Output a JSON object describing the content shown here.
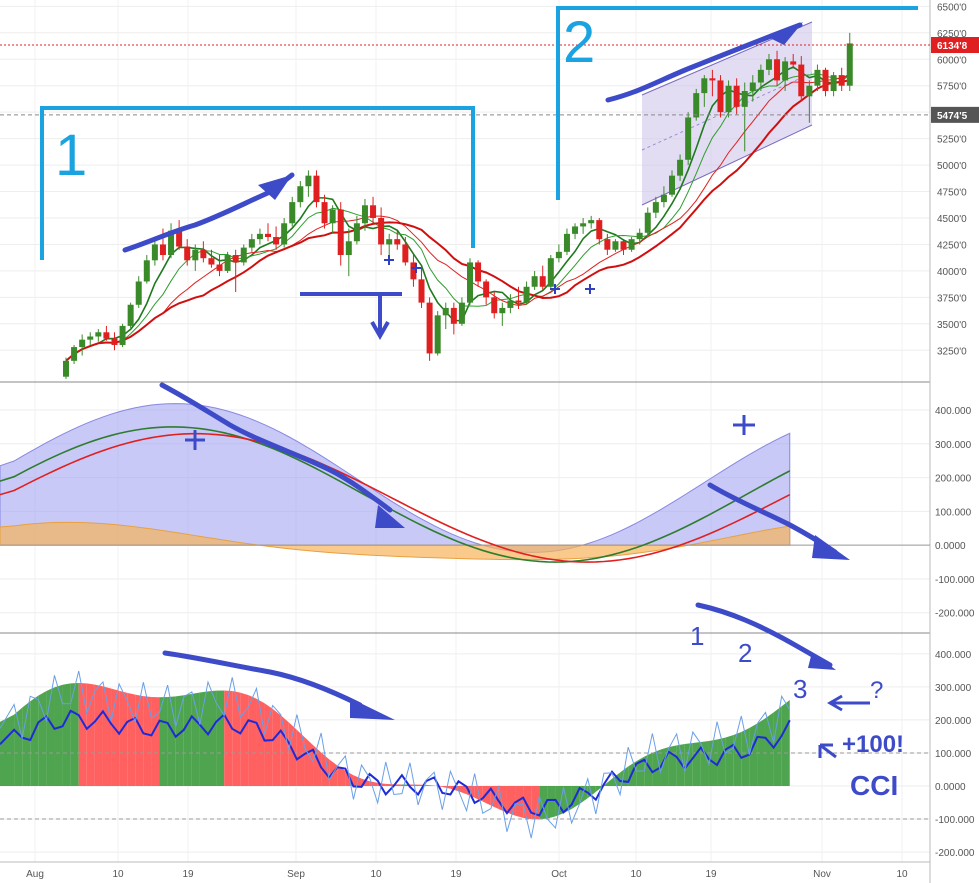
{
  "chart_data": [
    {
      "type": "candlestick",
      "ylim": [
        2950,
        6560
      ],
      "y_ticks": [
        "6500'0",
        "6250'0",
        "6000'0",
        "5750'0",
        "5500'0",
        "5250'0",
        "5000'0",
        "4750'0",
        "4500'0",
        "4250'0",
        "4000'0",
        "3750'0",
        "3500'0",
        "3250'0"
      ],
      "y_tick_values": [
        6500,
        6250,
        6000,
        5750,
        5500,
        5250,
        5000,
        4750,
        4500,
        4250,
        4000,
        3750,
        3500,
        3250
      ],
      "last_price_label": "6134'8",
      "last_price": 6134.8,
      "level_label": "5474'5",
      "level_price": 5474.5,
      "candles": [
        [
          3000,
          3180,
          2980,
          3150
        ],
        [
          3150,
          3300,
          3120,
          3280
        ],
        [
          3280,
          3400,
          3200,
          3350
        ],
        [
          3350,
          3420,
          3300,
          3380
        ],
        [
          3380,
          3450,
          3330,
          3420
        ],
        [
          3420,
          3480,
          3340,
          3360
        ],
        [
          3360,
          3420,
          3250,
          3300
        ],
        [
          3300,
          3500,
          3280,
          3480
        ],
        [
          3480,
          3700,
          3460,
          3680
        ],
        [
          3680,
          3950,
          3650,
          3900
        ],
        [
          3900,
          4150,
          3880,
          4100
        ],
        [
          4100,
          4300,
          4050,
          4250
        ],
        [
          4250,
          4400,
          4100,
          4150
        ],
        [
          4150,
          4450,
          4120,
          4380
        ],
        [
          4380,
          4480,
          4200,
          4230
        ],
        [
          4230,
          4300,
          4050,
          4100
        ],
        [
          4100,
          4250,
          4000,
          4200
        ],
        [
          4200,
          4280,
          4080,
          4120
        ],
        [
          4120,
          4200,
          4030,
          4060
        ],
        [
          4060,
          4150,
          3950,
          4000
        ],
        [
          4000,
          4180,
          3980,
          4150
        ],
        [
          4150,
          4200,
          3800,
          4080
        ],
        [
          4080,
          4250,
          4050,
          4220
        ],
        [
          4220,
          4350,
          4180,
          4300
        ],
        [
          4300,
          4400,
          4250,
          4350
        ],
        [
          4350,
          4450,
          4280,
          4320
        ],
        [
          4320,
          4420,
          4200,
          4250
        ],
        [
          4250,
          4500,
          4220,
          4450
        ],
        [
          4450,
          4700,
          4420,
          4650
        ],
        [
          4650,
          4850,
          4600,
          4800
        ],
        [
          4800,
          4950,
          4700,
          4900
        ],
        [
          4900,
          4950,
          4600,
          4650
        ],
        [
          4650,
          4720,
          4400,
          4450
        ],
        [
          4450,
          4620,
          4350,
          4580
        ],
        [
          4580,
          4650,
          4050,
          4150
        ],
        [
          4150,
          4400,
          3950,
          4280
        ],
        [
          4280,
          4520,
          4250,
          4450
        ],
        [
          4450,
          4680,
          4380,
          4620
        ],
        [
          4620,
          4700,
          4450,
          4500
        ],
        [
          4500,
          4600,
          4150,
          4250
        ],
        [
          4250,
          4350,
          4100,
          4300
        ],
        [
          4300,
          4380,
          4200,
          4250
        ],
        [
          4250,
          4320,
          4050,
          4080
        ],
        [
          4080,
          4150,
          3850,
          3920
        ],
        [
          3920,
          4050,
          3650,
          3700
        ],
        [
          3700,
          3750,
          3150,
          3220
        ],
        [
          3220,
          3620,
          3200,
          3580
        ],
        [
          3580,
          3700,
          3450,
          3650
        ],
        [
          3650,
          3700,
          3400,
          3500
        ],
        [
          3500,
          3750,
          3480,
          3700
        ],
        [
          3700,
          4120,
          3680,
          4080
        ],
        [
          4080,
          4100,
          3850,
          3900
        ],
        [
          3900,
          3920,
          3680,
          3750
        ],
        [
          3750,
          3800,
          3550,
          3600
        ],
        [
          3600,
          3700,
          3480,
          3650
        ],
        [
          3650,
          3780,
          3600,
          3720
        ],
        [
          3720,
          3850,
          3640,
          3700
        ],
        [
          3700,
          3900,
          3680,
          3850
        ],
        [
          3850,
          4000,
          3820,
          3950
        ],
        [
          3950,
          4050,
          3820,
          3850
        ],
        [
          3850,
          4150,
          3830,
          4120
        ],
        [
          4120,
          4250,
          4080,
          4180
        ],
        [
          4180,
          4400,
          4150,
          4350
        ],
        [
          4350,
          4450,
          4300,
          4420
        ],
        [
          4420,
          4500,
          4350,
          4450
        ],
        [
          4450,
          4520,
          4400,
          4480
        ],
        [
          4480,
          4500,
          4250,
          4300
        ],
        [
          4300,
          4350,
          4150,
          4200
        ],
        [
          4200,
          4300,
          4180,
          4280
        ],
        [
          4280,
          4300,
          4150,
          4200
        ],
        [
          4200,
          4320,
          4180,
          4300
        ],
        [
          4300,
          4400,
          4250,
          4360
        ],
        [
          4360,
          4600,
          4340,
          4550
        ],
        [
          4550,
          4700,
          4500,
          4650
        ],
        [
          4650,
          4800,
          4600,
          4720
        ],
        [
          4720,
          4950,
          4700,
          4900
        ],
        [
          4900,
          5100,
          4850,
          5050
        ],
        [
          5050,
          5500,
          5000,
          5450
        ],
        [
          5450,
          5720,
          5420,
          5680
        ],
        [
          5680,
          5850,
          5550,
          5820
        ],
        [
          5820,
          5900,
          5650,
          5800
        ],
        [
          5800,
          5850,
          5450,
          5500
        ],
        [
          5500,
          5800,
          5450,
          5750
        ],
        [
          5750,
          5820,
          5480,
          5550
        ],
        [
          5550,
          5780,
          5130,
          5700
        ],
        [
          5700,
          5850,
          5600,
          5780
        ],
        [
          5780,
          5950,
          5700,
          5900
        ],
        [
          5900,
          6050,
          5850,
          6000
        ],
        [
          6000,
          6080,
          5750,
          5800
        ],
        [
          5800,
          6020,
          5700,
          5980
        ],
        [
          5980,
          6050,
          5920,
          5950
        ],
        [
          5950,
          6030,
          5600,
          5650
        ],
        [
          5650,
          5800,
          5400,
          5750
        ],
        [
          5750,
          5950,
          5700,
          5900
        ],
        [
          5900,
          5920,
          5650,
          5700
        ],
        [
          5700,
          5880,
          5650,
          5850
        ],
        [
          5850,
          5920,
          5700,
          5750
        ],
        [
          5750,
          6250,
          5700,
          6150
        ]
      ],
      "series_colors": {
        "up": "#3a8a2a",
        "down": "#e02020",
        "ma_fast_green": "#228b22",
        "ma_fast_red": "#e02020"
      }
    },
    {
      "type": "area-line",
      "ylim": [
        -260,
        480
      ],
      "y_ticks": [
        "400.000",
        "300.000",
        "200.000",
        "100.000",
        "0.0000",
        "-100.000",
        "-200.000"
      ],
      "y_tick_values": [
        400,
        300,
        200,
        100,
        0,
        -100,
        -200
      ]
    },
    {
      "type": "area-line",
      "ylim": [
        -230,
        460
      ],
      "y_ticks": [
        "400.000",
        "300.000",
        "200.000",
        "100.000",
        "0.0000",
        "-100.000",
        "-200.000"
      ],
      "y_tick_values": [
        400,
        300,
        200,
        100,
        0,
        -100,
        -200
      ]
    }
  ],
  "x_ticks": [
    "Aug",
    "10",
    "19",
    "Sep",
    "10",
    "19",
    "Oct",
    "10",
    "19",
    "Nov",
    "10"
  ],
  "annotations": {
    "label_1": "1",
    "label_2": "2",
    "osc_label_1": "1",
    "osc_label_2": "2",
    "osc_label_3": "3",
    "question": "?",
    "plus_100": "+100!",
    "cci": "CCI"
  }
}
